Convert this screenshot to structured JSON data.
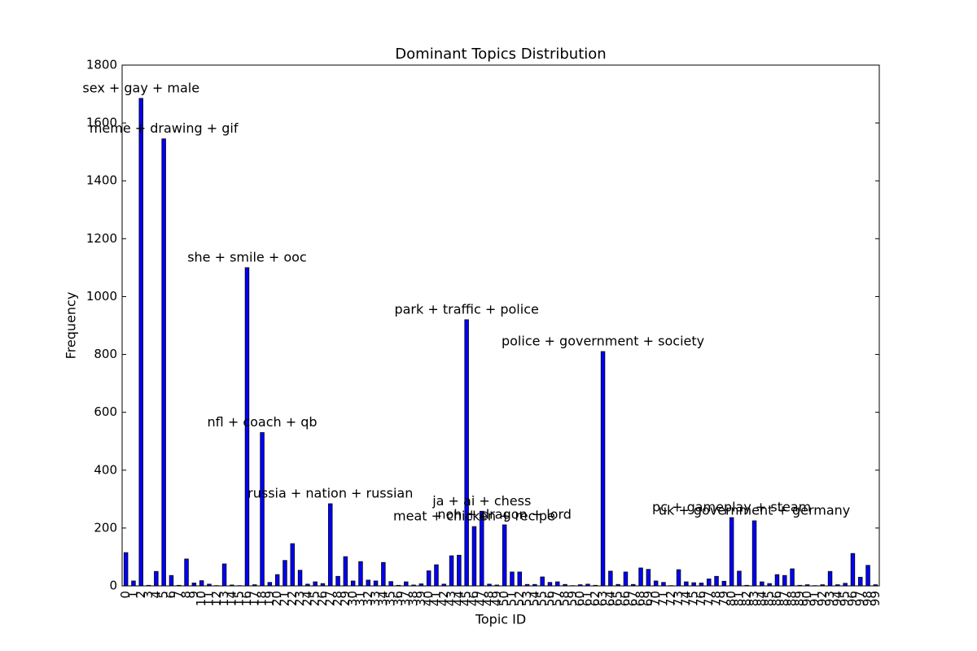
{
  "chart_data": {
    "type": "bar",
    "title": "Dominant Topics Distribution",
    "xlabel": "Topic ID",
    "ylabel": "Frequency",
    "categories": [
      "0",
      "1",
      "2",
      "3",
      "4",
      "5",
      "6",
      "7",
      "8",
      "9",
      "10",
      "11",
      "12",
      "13",
      "14",
      "15",
      "16",
      "17",
      "18",
      "19",
      "20",
      "21",
      "22",
      "23",
      "24",
      "25",
      "26",
      "27",
      "28",
      "29",
      "30",
      "31",
      "32",
      "33",
      "34",
      "35",
      "36",
      "37",
      "38",
      "39",
      "40",
      "41",
      "42",
      "43",
      "44",
      "45",
      "46",
      "47",
      "48",
      "49",
      "50",
      "51",
      "52",
      "53",
      "54",
      "55",
      "56",
      "57",
      "58",
      "59",
      "60",
      "61",
      "62",
      "63",
      "64",
      "65",
      "66",
      "67",
      "68",
      "69",
      "70",
      "71",
      "72",
      "73",
      "74",
      "75",
      "76",
      "77",
      "78",
      "79",
      "80",
      "81",
      "82",
      "83",
      "84",
      "85",
      "86",
      "87",
      "88",
      "89",
      "90",
      "91",
      "92",
      "93",
      "94",
      "95",
      "96",
      "97",
      "98",
      "99"
    ],
    "values": [
      115,
      17,
      1685,
      2,
      50,
      1545,
      36,
      2,
      93,
      10,
      18,
      6,
      1,
      76,
      3,
      1,
      1100,
      4,
      530,
      12,
      39,
      88,
      146,
      54,
      6,
      14,
      8,
      284,
      33,
      101,
      17,
      84,
      20,
      17,
      81,
      15,
      2,
      14,
      3,
      7,
      52,
      73,
      6,
      104,
      106,
      920,
      205,
      258,
      6,
      3,
      211,
      48,
      48,
      5,
      5,
      31,
      12,
      14,
      5,
      1,
      4,
      6,
      2,
      810,
      51,
      5,
      48,
      5,
      62,
      57,
      17,
      12,
      1,
      56,
      14,
      11,
      10,
      24,
      33,
      16,
      236,
      51,
      2,
      225,
      14,
      8,
      39,
      36,
      59,
      2,
      4,
      1,
      4,
      50,
      4,
      9,
      112,
      30,
      71,
      4
    ],
    "color": "#0000ff",
    "ylim": [
      0,
      1800
    ],
    "yticks": [
      0,
      200,
      400,
      600,
      800,
      1000,
      1200,
      1400,
      1600,
      1800
    ],
    "annotations": [
      {
        "text": "sex + gay + male",
        "category": "2"
      },
      {
        "text": "meme + drawing + gif",
        "category": "5"
      },
      {
        "text": "she + smile + ooc",
        "category": "16"
      },
      {
        "text": "nfl + coach + qb",
        "category": "18"
      },
      {
        "text": "russia + nation + russian",
        "category": "27"
      },
      {
        "text": "park + traffic + police",
        "category": "45"
      },
      {
        "text": "meat + chicken + recipe",
        "category": "46"
      },
      {
        "text": "ja + ai + chess",
        "category": "47"
      },
      {
        "text": "noh + dragon + lord",
        "category": "50"
      },
      {
        "text": "police + government + society",
        "category": "63"
      },
      {
        "text": "pc + gameplay + steam",
        "category": "80"
      },
      {
        "text": "uk + government + germany",
        "category": "83"
      }
    ]
  }
}
